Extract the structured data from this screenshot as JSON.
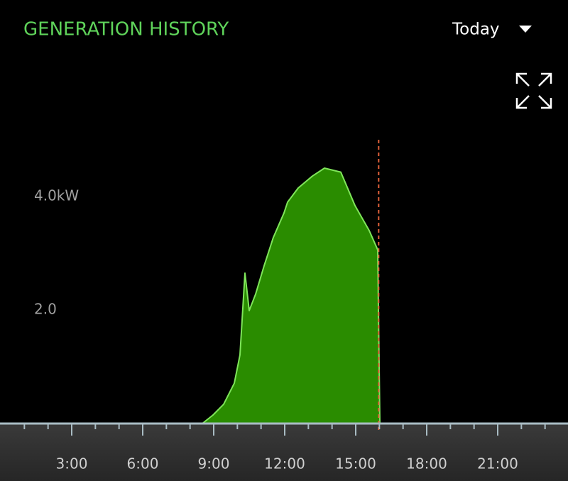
{
  "chart_data": {
    "type": "area",
    "title": "GENERATION HISTORY",
    "period_selector": "Today",
    "x": [
      8.52,
      8.97,
      9.42,
      9.87,
      10.11,
      10.32,
      10.5,
      10.77,
      11.13,
      11.52,
      11.97,
      12.12,
      12.57,
      13.17,
      13.68,
      14.37,
      14.97,
      15.57,
      15.93,
      16.02
    ],
    "values": [
      0,
      0.15,
      0.34,
      0.71,
      1.21,
      2.65,
      1.99,
      2.28,
      2.78,
      3.28,
      3.71,
      3.9,
      4.15,
      4.36,
      4.5,
      4.43,
      3.84,
      3.4,
      3.06,
      0
    ],
    "color": "#2a8c00",
    "line_color": "#7fe55a",
    "now_x": 15.97,
    "now_color": "#e0603a",
    "xlim": [
      0,
      24
    ],
    "xticks": [
      {
        "value": 3,
        "label": "3:00"
      },
      {
        "value": 6,
        "label": "6:00"
      },
      {
        "value": 9,
        "label": "9:00"
      },
      {
        "value": 12,
        "label": "12:00"
      },
      {
        "value": 15,
        "label": "15:00"
      },
      {
        "value": 18,
        "label": "18:00"
      },
      {
        "value": 21,
        "label": "21:00"
      }
    ],
    "xminorticks": [
      1,
      2,
      4,
      5,
      7,
      8,
      10,
      11,
      13,
      14,
      16,
      17,
      19,
      20,
      22,
      23
    ],
    "ylim": [
      0,
      6
    ],
    "yticks": [
      {
        "value": 2,
        "label": "2.0"
      },
      {
        "value": 4,
        "label": "4.0kW"
      }
    ],
    "grid": false
  }
}
